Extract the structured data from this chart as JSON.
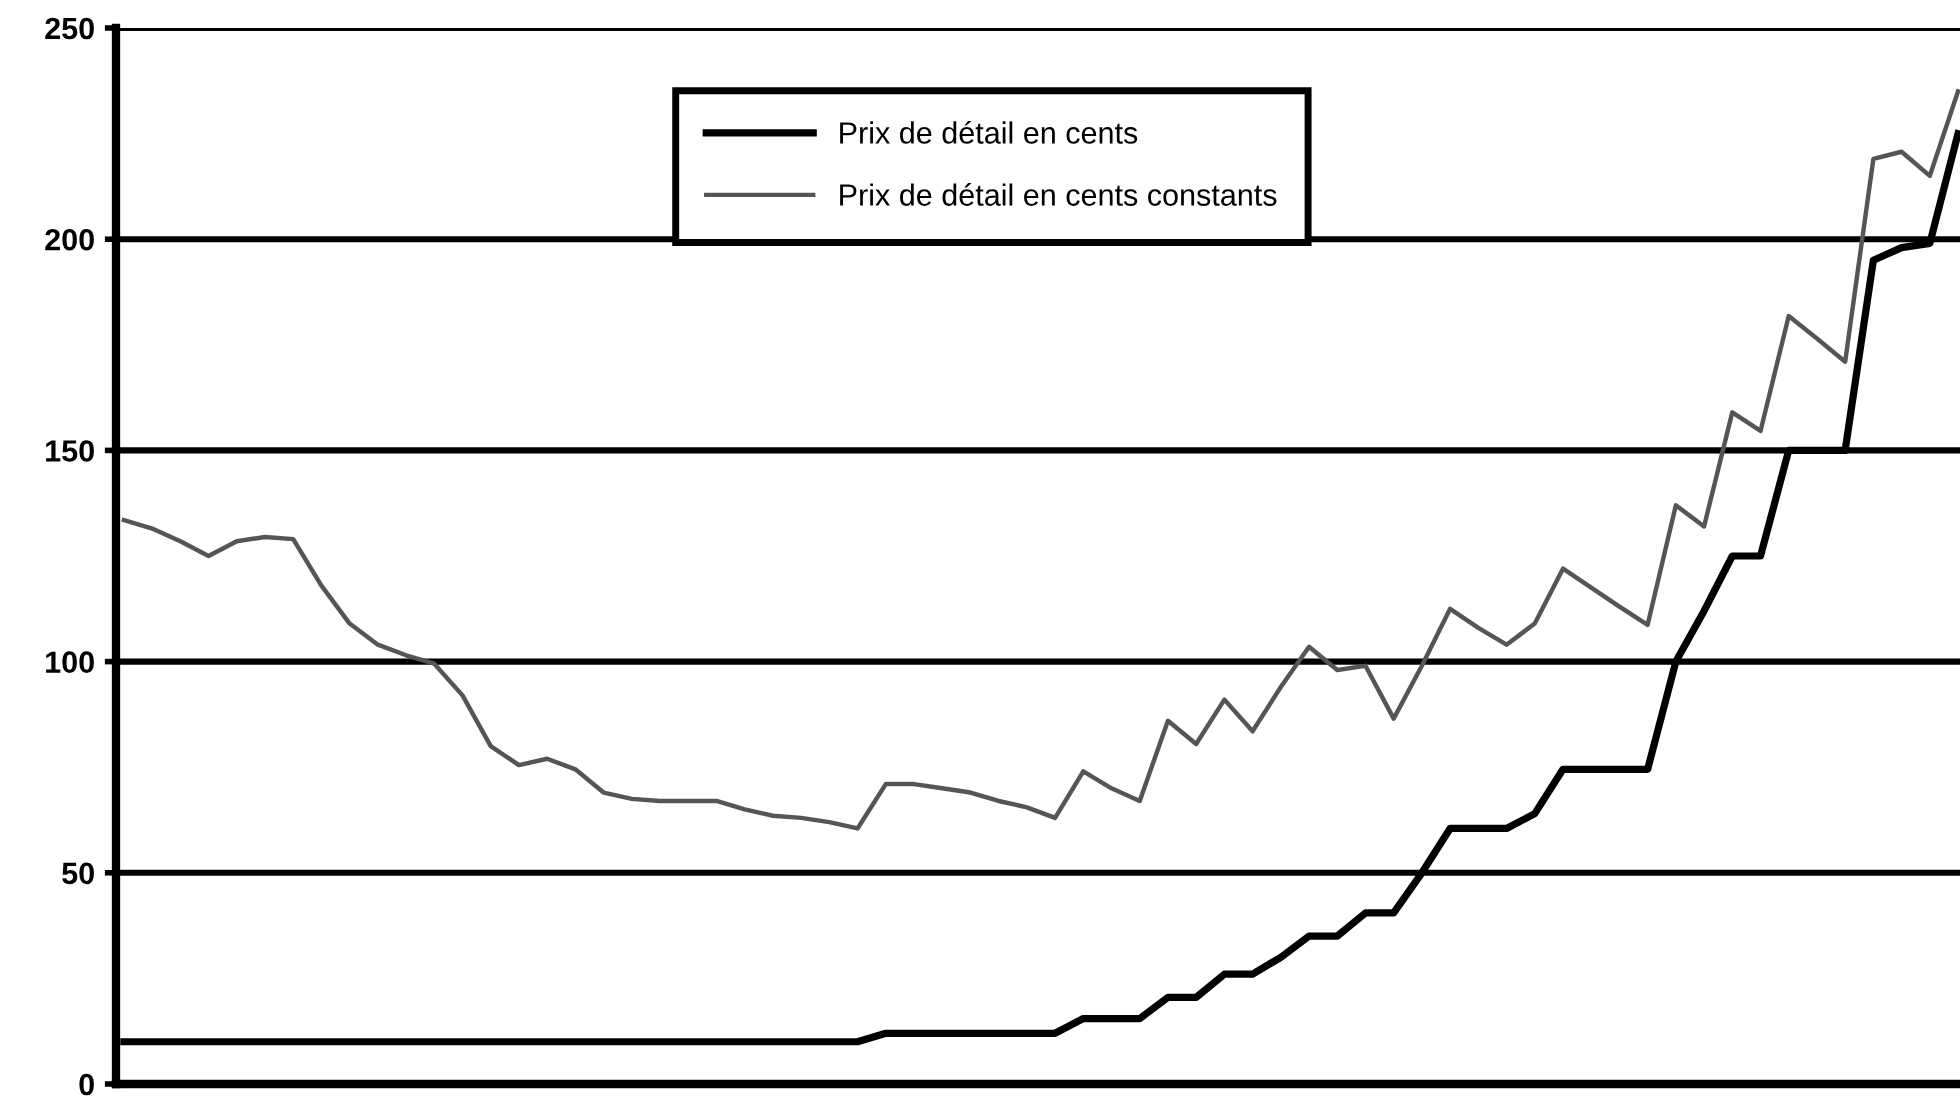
{
  "chart_data": {
    "type": "line",
    "categories": [
      null,
      null,
      null,
      null,
      null,
      null,
      null,
      null,
      null,
      null,
      null,
      null,
      null,
      null,
      null,
      null,
      null,
      null,
      null,
      null,
      null,
      null,
      null,
      null,
      null,
      null,
      null,
      null,
      null,
      null,
      null,
      null,
      null,
      null,
      null,
      null,
      null,
      null,
      null,
      null,
      null,
      null,
      null,
      null,
      null,
      null,
      null,
      null,
      null,
      null,
      null,
      null,
      null,
      null,
      null,
      null,
      null,
      null,
      null,
      null,
      null,
      null,
      null,
      null,
      null,
      null
    ],
    "series": [
      {
        "name": "Prix de détail en cents",
        "color": "#000000",
        "values": [
          10,
          10,
          10,
          10,
          10,
          10,
          10,
          10,
          10,
          10,
          10,
          10,
          10,
          10,
          10,
          10,
          10,
          10,
          10,
          10,
          10,
          10,
          10,
          10,
          10,
          10,
          10,
          12,
          12,
          12,
          12,
          12,
          12,
          12,
          15.5,
          15.5,
          15.5,
          20.5,
          20.5,
          26,
          26,
          30,
          35,
          35,
          40.5,
          40.5,
          50,
          60.5,
          60.5,
          60.5,
          64,
          74.5,
          74.5,
          74.5,
          74.5,
          100,
          112,
          125,
          125,
          150,
          150,
          150,
          195,
          198,
          199,
          225
        ]
      },
      {
        "name": "Prix de détail en cents constants",
        "color": "#555555",
        "values": [
          133.5,
          131.5,
          128.5,
          125,
          128.5,
          129.5,
          129,
          118,
          109,
          104,
          101.5,
          99.5,
          92,
          80,
          75.5,
          77,
          74.5,
          69,
          67.5,
          67,
          67,
          67,
          65,
          63.5,
          63,
          62,
          60.5,
          71,
          71,
          70,
          69,
          67,
          65.5,
          63,
          74,
          70,
          67,
          86,
          80.5,
          91,
          83.5,
          94,
          103.5,
          98,
          99,
          86.5,
          99,
          112.5,
          108,
          104,
          109,
          122,
          117.5,
          113,
          108.7,
          137,
          132,
          159,
          154.6,
          181.8,
          176.5,
          171,
          219,
          220.7,
          215,
          235
        ]
      }
    ],
    "ylim": [
      0,
      250
    ],
    "yticks": [
      0,
      50,
      100,
      150,
      200,
      250
    ],
    "grid": "y",
    "legend": "top",
    "tick_labels": "y",
    "line_style": "solid"
  }
}
